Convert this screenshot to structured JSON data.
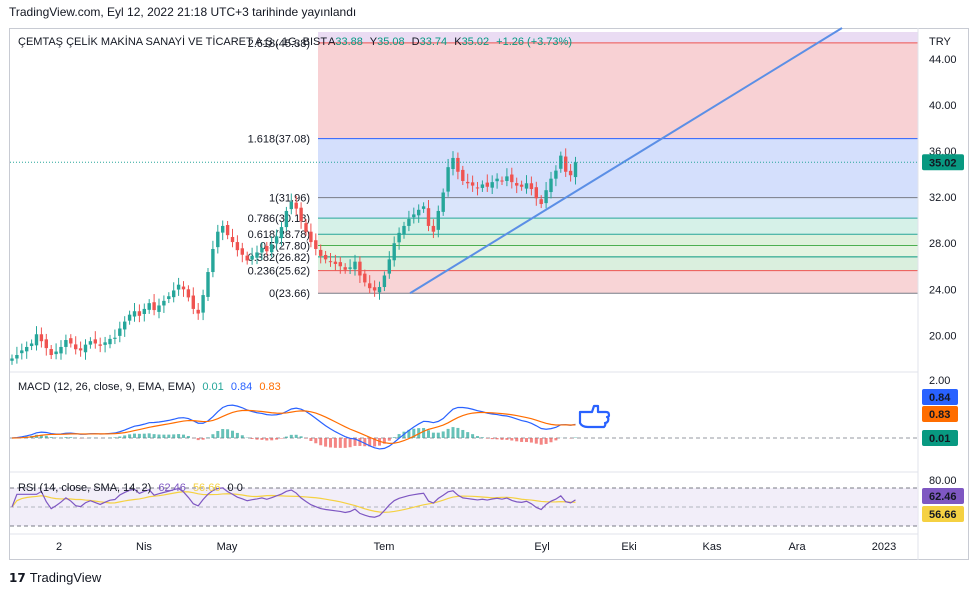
{
  "header": {
    "published": "TradingView.com, Eyl 12, 2022 21:18 UTC+3 tarihinde yayınlandı"
  },
  "footer": {
    "brand": "TradingView",
    "logo_glyph": "17"
  },
  "colors": {
    "up": "#26a69a",
    "down": "#ef5350",
    "trend": "#5b8fe6",
    "macd": "#2962ff",
    "signal": "#ff6d00",
    "rsi": "#7e57c2",
    "rsi_ma": "#f5d142"
  },
  "chart_data": {
    "type": "candlestick",
    "symbol_label": "ÇEMTAŞ ÇELİK MAKİNA SANAYİ VE TİCARET A.Ş., 1G, BIST",
    "currency": "TRY",
    "ohlc": {
      "o_label": "A",
      "o": "33.88",
      "h_label": "Y",
      "h": "35.08",
      "l_label": "D",
      "l": "33.74",
      "c_label": "K",
      "c": "35.02",
      "change": "+1.26 (+3.73%)"
    },
    "last_price": "35.02",
    "y_ticks": [
      "44.00",
      "40.00",
      "36.00",
      "32.00",
      "28.00",
      "24.00",
      "20.00"
    ],
    "y_range": [
      17.0,
      46.5
    ],
    "x_ticks": [
      {
        "label": "2",
        "x": 59
      },
      {
        "label": "Nis",
        "x": 144
      },
      {
        "label": "May",
        "x": 227
      },
      {
        "label": "Tem",
        "x": 384
      },
      {
        "label": "Eyl",
        "x": 542
      },
      {
        "label": "Eki",
        "x": 629
      },
      {
        "label": "Kas",
        "x": 712
      },
      {
        "label": "Ara",
        "x": 797
      },
      {
        "label": "2023",
        "x": 884
      }
    ],
    "fibonacci": [
      {
        "ratio": "2.618",
        "price": 45.38,
        "label": "2.618(45.38)",
        "color": "#ef5350"
      },
      {
        "ratio": "1.618",
        "price": 37.08,
        "label": "1.618(37.08)",
        "color": "#2962ff"
      },
      {
        "ratio": "1",
        "price": 31.96,
        "label": "1(31.96)",
        "color": "#787b86"
      },
      {
        "ratio": "0.786",
        "price": 30.18,
        "label": "0.786(30.18)",
        "color": "#26a69a"
      },
      {
        "ratio": "0.618",
        "price": 28.78,
        "label": "0.618(28.78)",
        "color": "#26a69a"
      },
      {
        "ratio": "0.5",
        "price": 27.8,
        "label": "0.5(27.80)",
        "color": "#4caf50"
      },
      {
        "ratio": "0.382",
        "price": 26.82,
        "label": "0.382(26.82)",
        "color": "#089981"
      },
      {
        "ratio": "0.236",
        "price": 25.62,
        "label": "0.236(25.62)",
        "color": "#ef5350"
      },
      {
        "ratio": "0",
        "price": 23.66,
        "label": "0(23.66)",
        "color": "#787b86"
      }
    ],
    "close_series": [
      18.0,
      18.3,
      18.7,
      19.0,
      19.3,
      20.1,
      19.5,
      18.9,
      18.3,
      18.6,
      19.0,
      19.6,
      19.3,
      18.8,
      18.7,
      19.2,
      19.5,
      19.3,
      19.1,
      19.4,
      19.7,
      19.8,
      20.6,
      21.2,
      21.8,
      22.1,
      21.7,
      22.3,
      22.8,
      22.2,
      22.6,
      23.0,
      23.4,
      23.9,
      24.4,
      24.0,
      23.3,
      22.3,
      21.9,
      23.5,
      25.5,
      27.5,
      29.0,
      29.5,
      28.7,
      28.1,
      27.4,
      27.0,
      26.5,
      26.9,
      27.2,
      27.6,
      27.3,
      27.9,
      28.6,
      29.4,
      30.8,
      31.6,
      31.0,
      29.9,
      29.0,
      28.1,
      27.5,
      26.9,
      26.6,
      26.4,
      26.2,
      26.0,
      25.7,
      25.9,
      26.4,
      25.2,
      24.6,
      24.1,
      23.9,
      24.2,
      25.2,
      26.6,
      28.0,
      28.9,
      29.5,
      30.1,
      30.5,
      30.9,
      31.2,
      29.5,
      29.0,
      30.8,
      32.4,
      34.6,
      35.4,
      34.2,
      33.4,
      33.2,
      33.0,
      32.8,
      33.1,
      32.9,
      33.3,
      33.6,
      33.4,
      33.8,
      33.3,
      33.0,
      32.9,
      33.2,
      32.7,
      31.9,
      31.4,
      32.6,
      33.6,
      34.3,
      35.6,
      34.2,
      33.9,
      35.02
    ],
    "macd": {
      "label": "MACD (12, 26, close, 9, EMA, EMA)",
      "macd_value": "0.01",
      "signal_value": "0.84",
      "hist_value": "0.83",
      "axis_tick": "2.00",
      "badges": [
        "0.84",
        "0.83",
        "0.01"
      ]
    },
    "rsi": {
      "label": "RSI (14, close, SMA, 14, 2)",
      "rsi_value": "62.46",
      "ma_value": "56.66",
      "extra": "0  0",
      "axis_tick": "80.00",
      "badges": [
        "62.46",
        "56.66"
      ]
    }
  }
}
